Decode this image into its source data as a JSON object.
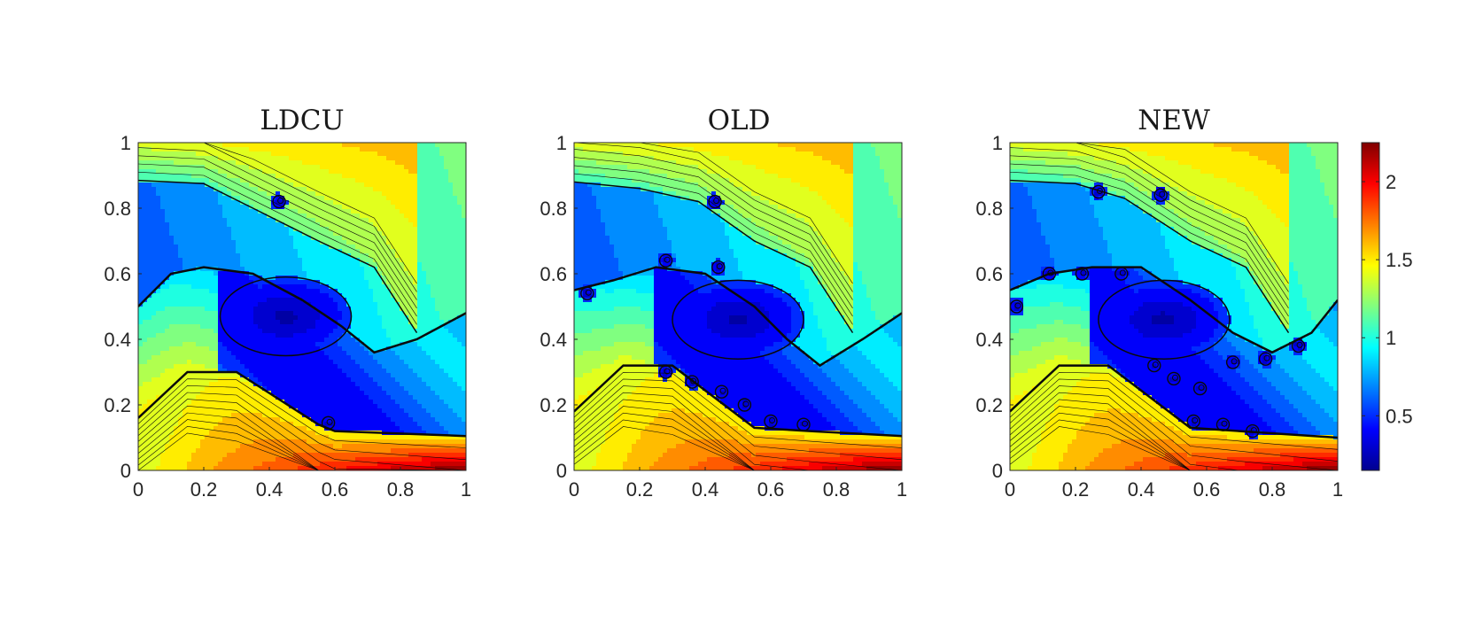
{
  "chart_data": [
    {
      "type": "heatmap",
      "title": "LDCU",
      "xlim": [
        0,
        1
      ],
      "ylim": [
        0,
        1
      ],
      "xticks": [
        "0",
        "0.2",
        "0.4",
        "0.6",
        "0.8",
        "1"
      ],
      "yticks": [
        "0",
        "0.2",
        "0.4",
        "0.6",
        "0.8",
        "1"
      ],
      "contours": true,
      "features": {
        "lower_shock": [
          [
            0,
            0.5
          ],
          [
            0.1,
            0.6
          ],
          [
            0.2,
            0.62
          ],
          [
            0.35,
            0.6
          ],
          [
            0.5,
            0.52
          ],
          [
            0.62,
            0.44
          ],
          [
            0.72,
            0.36
          ],
          [
            0.85,
            0.4
          ],
          [
            1,
            0.48
          ]
        ],
        "upper_shock": [
          [
            0,
            0.885
          ],
          [
            0.2,
            0.875
          ],
          [
            0.35,
            0.8
          ],
          [
            0.55,
            0.7
          ],
          [
            0.72,
            0.62
          ],
          [
            0.85,
            0.42
          ]
        ],
        "core_center": [
          0.45,
          0.47
        ],
        "bottom_band": [
          [
            0,
            0.16
          ],
          [
            0.15,
            0.3
          ],
          [
            0.3,
            0.3
          ],
          [
            0.55,
            0.14
          ],
          [
            0.6,
            0.12
          ],
          [
            1,
            0.105
          ]
        ],
        "rollups": [
          [
            0.43,
            0.82
          ],
          [
            0.58,
            0.145
          ]
        ]
      }
    },
    {
      "type": "heatmap",
      "title": "OLD",
      "xlim": [
        0,
        1
      ],
      "ylim": [
        0,
        1
      ],
      "xticks": [
        "0",
        "0.2",
        "0.4",
        "0.6",
        "0.8",
        "1"
      ],
      "yticks": [
        "0",
        "0.2",
        "0.4",
        "0.6",
        "0.8",
        "1"
      ],
      "contours": true,
      "features": {
        "lower_shock": [
          [
            0,
            0.55
          ],
          [
            0.12,
            0.58
          ],
          [
            0.25,
            0.62
          ],
          [
            0.4,
            0.6
          ],
          [
            0.55,
            0.5
          ],
          [
            0.65,
            0.4
          ],
          [
            0.75,
            0.32
          ],
          [
            0.88,
            0.4
          ],
          [
            1,
            0.48
          ]
        ],
        "upper_shock": [
          [
            0,
            0.88
          ],
          [
            0.2,
            0.86
          ],
          [
            0.38,
            0.82
          ],
          [
            0.55,
            0.7
          ],
          [
            0.72,
            0.62
          ],
          [
            0.85,
            0.42
          ]
        ],
        "core_center": [
          0.5,
          0.46
        ],
        "bottom_band": [
          [
            0,
            0.18
          ],
          [
            0.15,
            0.32
          ],
          [
            0.3,
            0.32
          ],
          [
            0.55,
            0.13
          ],
          [
            0.72,
            0.12
          ],
          [
            1,
            0.105
          ]
        ],
        "rollups": [
          [
            0.04,
            0.54
          ],
          [
            0.28,
            0.64
          ],
          [
            0.44,
            0.62
          ],
          [
            0.28,
            0.3
          ],
          [
            0.36,
            0.27
          ],
          [
            0.45,
            0.24
          ],
          [
            0.52,
            0.2
          ],
          [
            0.6,
            0.15
          ],
          [
            0.7,
            0.14
          ],
          [
            0.43,
            0.82
          ]
        ]
      }
    },
    {
      "type": "heatmap",
      "title": "NEW",
      "xlim": [
        0,
        1
      ],
      "ylim": [
        0,
        1
      ],
      "xticks": [
        "0",
        "0.2",
        "0.4",
        "0.6",
        "0.8",
        "1"
      ],
      "yticks": [
        "0",
        "0.2",
        "0.4",
        "0.6",
        "0.8",
        "1"
      ],
      "contours": true,
      "features": {
        "lower_shock": [
          [
            0,
            0.55
          ],
          [
            0.12,
            0.6
          ],
          [
            0.25,
            0.62
          ],
          [
            0.4,
            0.62
          ],
          [
            0.55,
            0.52
          ],
          [
            0.68,
            0.42
          ],
          [
            0.8,
            0.36
          ],
          [
            0.92,
            0.42
          ],
          [
            1,
            0.52
          ]
        ],
        "upper_shock": [
          [
            0,
            0.885
          ],
          [
            0.2,
            0.875
          ],
          [
            0.35,
            0.83
          ],
          [
            0.55,
            0.7
          ],
          [
            0.72,
            0.62
          ],
          [
            0.85,
            0.42
          ]
        ],
        "core_center": [
          0.47,
          0.46
        ],
        "bottom_band": [
          [
            0,
            0.18
          ],
          [
            0.15,
            0.32
          ],
          [
            0.3,
            0.32
          ],
          [
            0.55,
            0.13
          ],
          [
            0.7,
            0.12
          ],
          [
            1,
            0.1
          ]
        ],
        "rollups": [
          [
            0.12,
            0.6
          ],
          [
            0.22,
            0.6
          ],
          [
            0.34,
            0.6
          ],
          [
            0.27,
            0.85
          ],
          [
            0.46,
            0.84
          ],
          [
            0.44,
            0.32
          ],
          [
            0.5,
            0.28
          ],
          [
            0.58,
            0.25
          ],
          [
            0.68,
            0.33
          ],
          [
            0.78,
            0.34
          ],
          [
            0.88,
            0.38
          ],
          [
            0.56,
            0.15
          ],
          [
            0.65,
            0.14
          ],
          [
            0.74,
            0.12
          ],
          [
            0.02,
            0.5
          ]
        ]
      }
    }
  ],
  "colorbar": {
    "colormap": [
      "#00008f",
      "#0000ff",
      "#0080ff",
      "#00ffff",
      "#80ff80",
      "#ffff00",
      "#ff8000",
      "#ff0000",
      "#800000"
    ],
    "range": [
      0.15,
      2.25
    ],
    "ticks": [
      "0.5",
      "1",
      "1.5",
      "2"
    ]
  }
}
